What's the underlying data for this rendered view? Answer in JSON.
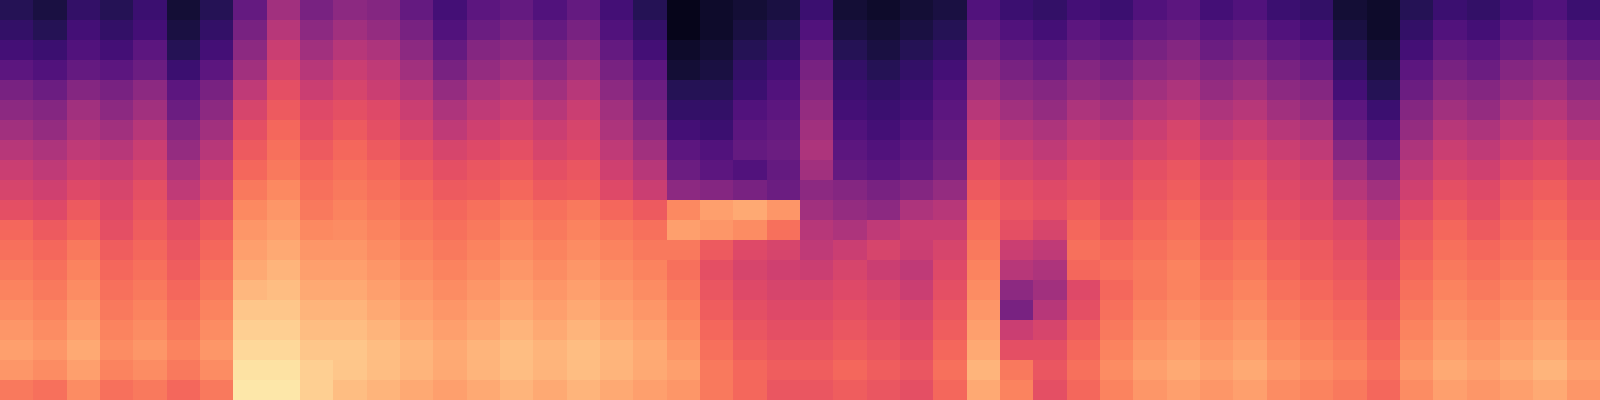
{
  "chart_data": {
    "type": "heatmap",
    "color": "magma",
    "tick_labels": false,
    "zlim": [
      0,
      100
    ],
    "z": [
      [
        15,
        12,
        18,
        15,
        20,
        10,
        15,
        30,
        45,
        35,
        40,
        38,
        30,
        22,
        28,
        30,
        25,
        30,
        22,
        15,
        5,
        8,
        10,
        12,
        20,
        10,
        8,
        10,
        12,
        25,
        20,
        18,
        22,
        20,
        25,
        28,
        22,
        25,
        20,
        18,
        10,
        8,
        15,
        20,
        18,
        22,
        25,
        20
      ],
      [
        18,
        15,
        22,
        18,
        22,
        12,
        18,
        35,
        50,
        40,
        45,
        42,
        35,
        25,
        32,
        35,
        30,
        35,
        25,
        18,
        5,
        8,
        12,
        15,
        25,
        12,
        10,
        12,
        15,
        30,
        25,
        22,
        28,
        25,
        30,
        32,
        28,
        30,
        25,
        22,
        12,
        8,
        18,
        25,
        22,
        28,
        30,
        25
      ],
      [
        22,
        20,
        25,
        22,
        28,
        15,
        22,
        40,
        55,
        45,
        50,
        48,
        40,
        30,
        38,
        40,
        35,
        40,
        30,
        22,
        8,
        10,
        15,
        18,
        30,
        15,
        12,
        15,
        18,
        35,
        30,
        28,
        32,
        30,
        35,
        38,
        32,
        35,
        30,
        28,
        15,
        10,
        22,
        30,
        28,
        32,
        35,
        30
      ],
      [
        28,
        25,
        30,
        28,
        32,
        20,
        28,
        45,
        58,
        50,
        55,
        52,
        45,
        35,
        42,
        45,
        40,
        45,
        35,
        28,
        10,
        12,
        18,
        22,
        35,
        18,
        15,
        18,
        22,
        40,
        35,
        32,
        38,
        35,
        40,
        42,
        38,
        40,
        35,
        32,
        18,
        12,
        28,
        35,
        32,
        38,
        40,
        35
      ],
      [
        35,
        32,
        38,
        35,
        40,
        28,
        35,
        52,
        62,
        55,
        58,
        55,
        50,
        42,
        48,
        50,
        45,
        50,
        40,
        32,
        15,
        15,
        20,
        25,
        38,
        20,
        18,
        20,
        25,
        45,
        40,
        38,
        42,
        40,
        45,
        48,
        42,
        45,
        40,
        38,
        22,
        15,
        32,
        40,
        38,
        42,
        45,
        40
      ],
      [
        40,
        38,
        45,
        40,
        45,
        32,
        40,
        58,
        65,
        60,
        62,
        60,
        55,
        48,
        52,
        55,
        50,
        55,
        45,
        35,
        18,
        18,
        25,
        28,
        42,
        22,
        20,
        22,
        28,
        50,
        45,
        42,
        48,
        45,
        50,
        52,
        48,
        50,
        45,
        42,
        28,
        20,
        38,
        45,
        42,
        48,
        50,
        45
      ],
      [
        45,
        42,
        48,
        45,
        50,
        38,
        45,
        62,
        68,
        62,
        65,
        62,
        58,
        52,
        56,
        58,
        55,
        58,
        48,
        40,
        22,
        20,
        28,
        30,
        45,
        25,
        22,
        25,
        30,
        55,
        50,
        48,
        52,
        50,
        55,
        58,
        52,
        55,
        50,
        48,
        32,
        25,
        42,
        50,
        48,
        52,
        55,
        50
      ],
      [
        50,
        48,
        52,
        50,
        55,
        42,
        50,
        65,
        70,
        65,
        68,
        65,
        62,
        58,
        60,
        62,
        58,
        60,
        52,
        45,
        28,
        25,
        30,
        32,
        48,
        28,
        25,
        28,
        32,
        58,
        55,
        52,
        56,
        55,
        58,
        60,
        56,
        58,
        55,
        52,
        38,
        30,
        48,
        55,
        52,
        56,
        58,
        55
      ],
      [
        55,
        52,
        56,
        55,
        58,
        48,
        55,
        68,
        72,
        68,
        70,
        68,
        65,
        62,
        64,
        65,
        62,
        64,
        56,
        50,
        32,
        28,
        25,
        30,
        45,
        30,
        28,
        30,
        35,
        62,
        58,
        56,
        60,
        58,
        62,
        64,
        60,
        62,
        58,
        56,
        45,
        38,
        52,
        58,
        56,
        60,
        62,
        58
      ],
      [
        58,
        56,
        60,
        58,
        62,
        52,
        58,
        72,
        75,
        70,
        72,
        70,
        68,
        65,
        66,
        68,
        65,
        66,
        60,
        55,
        40,
        38,
        35,
        32,
        40,
        38,
        35,
        38,
        42,
        65,
        62,
        60,
        62,
        60,
        64,
        66,
        62,
        64,
        60,
        58,
        50,
        45,
        56,
        62,
        60,
        64,
        66,
        62
      ],
      [
        62,
        60,
        65,
        60,
        64,
        58,
        62,
        75,
        78,
        72,
        74,
        72,
        70,
        68,
        70,
        72,
        70,
        72,
        68,
        65,
        75,
        80,
        82,
        78,
        45,
        42,
        40,
        48,
        50,
        68,
        64,
        62,
        66,
        62,
        66,
        68,
        64,
        66,
        62,
        60,
        55,
        50,
        60,
        65,
        62,
        66,
        68,
        64
      ],
      [
        68,
        65,
        68,
        62,
        66,
        62,
        66,
        78,
        80,
        75,
        76,
        74,
        72,
        70,
        72,
        74,
        72,
        74,
        72,
        70,
        80,
        78,
        76,
        70,
        50,
        48,
        52,
        55,
        55,
        70,
        62,
        58,
        68,
        65,
        68,
        70,
        66,
        68,
        64,
        62,
        60,
        55,
        64,
        68,
        65,
        68,
        70,
        66
      ],
      [
        70,
        68,
        72,
        66,
        68,
        64,
        68,
        80,
        82,
        78,
        78,
        76,
        74,
        72,
        74,
        76,
        74,
        76,
        74,
        72,
        72,
        65,
        60,
        58,
        52,
        55,
        58,
        55,
        58,
        72,
        55,
        52,
        70,
        68,
        70,
        72,
        68,
        70,
        66,
        65,
        62,
        58,
        66,
        70,
        68,
        70,
        72,
        68
      ],
      [
        72,
        70,
        74,
        68,
        70,
        66,
        70,
        82,
        84,
        80,
        80,
        78,
        76,
        74,
        76,
        78,
        76,
        78,
        76,
        74,
        70,
        62,
        58,
        56,
        55,
        58,
        55,
        52,
        60,
        74,
        50,
        48,
        68,
        70,
        72,
        74,
        70,
        72,
        68,
        66,
        64,
        60,
        68,
        72,
        70,
        72,
        74,
        70
      ],
      [
        74,
        72,
        76,
        70,
        72,
        68,
        72,
        85,
        86,
        82,
        82,
        80,
        78,
        76,
        78,
        80,
        78,
        80,
        78,
        76,
        72,
        64,
        60,
        58,
        58,
        60,
        58,
        55,
        62,
        76,
        40,
        45,
        60,
        68,
        72,
        74,
        72,
        74,
        70,
        68,
        66,
        62,
        70,
        74,
        72,
        74,
        76,
        72
      ],
      [
        76,
        74,
        78,
        72,
        74,
        70,
        74,
        88,
        88,
        84,
        84,
        82,
        80,
        78,
        80,
        82,
        80,
        82,
        80,
        78,
        74,
        66,
        62,
        60,
        60,
        62,
        60,
        58,
        64,
        78,
        35,
        50,
        62,
        70,
        74,
        76,
        74,
        76,
        72,
        70,
        68,
        64,
        72,
        76,
        74,
        76,
        78,
        74
      ],
      [
        78,
        76,
        80,
        74,
        76,
        72,
        76,
        90,
        90,
        86,
        86,
        84,
        82,
        80,
        82,
        84,
        82,
        84,
        82,
        80,
        76,
        68,
        64,
        62,
        62,
        64,
        62,
        60,
        66,
        80,
        55,
        58,
        66,
        72,
        76,
        78,
        76,
        78,
        74,
        72,
        70,
        66,
        74,
        78,
        76,
        78,
        80,
        76
      ],
      [
        80,
        78,
        82,
        76,
        78,
        74,
        78,
        92,
        92,
        88,
        88,
        86,
        84,
        82,
        84,
        86,
        84,
        86,
        84,
        82,
        78,
        70,
        66,
        64,
        64,
        66,
        64,
        62,
        68,
        82,
        62,
        62,
        68,
        74,
        78,
        80,
        78,
        80,
        76,
        74,
        72,
        68,
        76,
        80,
        78,
        80,
        82,
        78
      ],
      [
        78,
        76,
        80,
        74,
        76,
        72,
        76,
        94,
        94,
        90,
        88,
        86,
        84,
        82,
        84,
        86,
        84,
        86,
        84,
        82,
        80,
        72,
        68,
        66,
        66,
        68,
        66,
        64,
        70,
        84,
        72,
        64,
        70,
        76,
        80,
        82,
        80,
        82,
        78,
        76,
        74,
        70,
        78,
        82,
        80,
        82,
        84,
        80
      ],
      [
        72,
        70,
        76,
        70,
        72,
        68,
        72,
        95,
        95,
        90,
        86,
        84,
        82,
        80,
        82,
        84,
        82,
        84,
        82,
        80,
        78,
        72,
        68,
        64,
        64,
        66,
        64,
        62,
        68,
        82,
        74,
        62,
        68,
        74,
        78,
        80,
        78,
        80,
        76,
        74,
        72,
        68,
        76,
        80,
        78,
        80,
        82,
        78
      ]
    ]
  }
}
